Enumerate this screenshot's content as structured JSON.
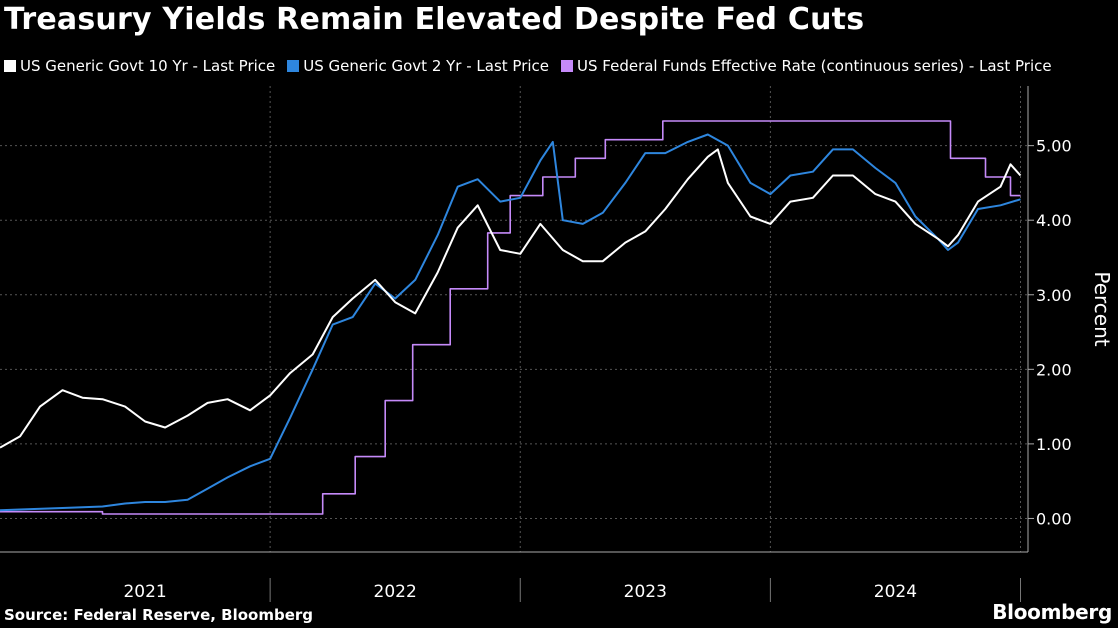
{
  "title": "Treasury Yields Remain Elevated Despite Fed Cuts",
  "source": "Source: Federal Reserve, Bloomberg",
  "brand": "Bloomberg",
  "chart_data": {
    "type": "line",
    "ylabel": "Percent",
    "ylim": [
      -0.45,
      5.8
    ],
    "xlim": [
      2020.92,
      2025.03
    ],
    "yticks": [
      0,
      1,
      2,
      3,
      4,
      5
    ],
    "ytick_labels": [
      "0.00",
      "1.00",
      "2.00",
      "3.00",
      "4.00",
      "5.00"
    ],
    "xtick_labels": [
      {
        "label": "2021",
        "center": 2021.5
      },
      {
        "label": "2022",
        "center": 2022.5
      },
      {
        "label": "2023",
        "center": 2023.5
      },
      {
        "label": "2024",
        "center": 2024.5
      }
    ],
    "year_boundaries": [
      2022.0,
      2023.0,
      2024.0,
      2025.0
    ],
    "grid": "dashed",
    "legend_position": "top-left",
    "series": [
      {
        "name": "US Generic Govt 10 Yr - Last Price",
        "color": "#ffffff",
        "points": [
          [
            2020.92,
            0.95
          ],
          [
            2021.0,
            1.1
          ],
          [
            2021.08,
            1.5
          ],
          [
            2021.17,
            1.72
          ],
          [
            2021.25,
            1.62
          ],
          [
            2021.33,
            1.6
          ],
          [
            2021.42,
            1.5
          ],
          [
            2021.5,
            1.3
          ],
          [
            2021.58,
            1.22
          ],
          [
            2021.67,
            1.38
          ],
          [
            2021.75,
            1.55
          ],
          [
            2021.83,
            1.6
          ],
          [
            2021.92,
            1.45
          ],
          [
            2022.0,
            1.65
          ],
          [
            2022.08,
            1.95
          ],
          [
            2022.17,
            2.2
          ],
          [
            2022.25,
            2.7
          ],
          [
            2022.33,
            2.95
          ],
          [
            2022.42,
            3.2
          ],
          [
            2022.5,
            2.9
          ],
          [
            2022.58,
            2.75
          ],
          [
            2022.67,
            3.3
          ],
          [
            2022.75,
            3.9
          ],
          [
            2022.83,
            4.2
          ],
          [
            2022.92,
            3.6
          ],
          [
            2023.0,
            3.55
          ],
          [
            2023.08,
            3.95
          ],
          [
            2023.17,
            3.6
          ],
          [
            2023.25,
            3.45
          ],
          [
            2023.33,
            3.45
          ],
          [
            2023.42,
            3.7
          ],
          [
            2023.5,
            3.85
          ],
          [
            2023.58,
            4.15
          ],
          [
            2023.67,
            4.55
          ],
          [
            2023.75,
            4.85
          ],
          [
            2023.79,
            4.95
          ],
          [
            2023.83,
            4.5
          ],
          [
            2023.92,
            4.05
          ],
          [
            2024.0,
            3.95
          ],
          [
            2024.08,
            4.25
          ],
          [
            2024.17,
            4.3
          ],
          [
            2024.25,
            4.6
          ],
          [
            2024.33,
            4.6
          ],
          [
            2024.42,
            4.35
          ],
          [
            2024.5,
            4.25
          ],
          [
            2024.58,
            3.95
          ],
          [
            2024.67,
            3.75
          ],
          [
            2024.71,
            3.65
          ],
          [
            2024.75,
            3.8
          ],
          [
            2024.83,
            4.25
          ],
          [
            2024.92,
            4.45
          ],
          [
            2024.96,
            4.75
          ],
          [
            2025.0,
            4.6
          ]
        ]
      },
      {
        "name": "US Generic Govt 2 Yr - Last Price",
        "color": "#2e86de",
        "points": [
          [
            2020.92,
            0.11
          ],
          [
            2021.0,
            0.12
          ],
          [
            2021.17,
            0.14
          ],
          [
            2021.33,
            0.16
          ],
          [
            2021.42,
            0.2
          ],
          [
            2021.5,
            0.22
          ],
          [
            2021.58,
            0.22
          ],
          [
            2021.67,
            0.25
          ],
          [
            2021.75,
            0.4
          ],
          [
            2021.83,
            0.55
          ],
          [
            2021.92,
            0.7
          ],
          [
            2022.0,
            0.8
          ],
          [
            2022.08,
            1.35
          ],
          [
            2022.17,
            2.0
          ],
          [
            2022.25,
            2.6
          ],
          [
            2022.33,
            2.7
          ],
          [
            2022.42,
            3.15
          ],
          [
            2022.5,
            2.95
          ],
          [
            2022.58,
            3.2
          ],
          [
            2022.67,
            3.8
          ],
          [
            2022.75,
            4.45
          ],
          [
            2022.83,
            4.55
          ],
          [
            2022.92,
            4.25
          ],
          [
            2023.0,
            4.3
          ],
          [
            2023.08,
            4.8
          ],
          [
            2023.13,
            5.05
          ],
          [
            2023.17,
            4.0
          ],
          [
            2023.25,
            3.95
          ],
          [
            2023.33,
            4.1
          ],
          [
            2023.42,
            4.5
          ],
          [
            2023.5,
            4.9
          ],
          [
            2023.58,
            4.9
          ],
          [
            2023.67,
            5.05
          ],
          [
            2023.75,
            5.15
          ],
          [
            2023.83,
            5.0
          ],
          [
            2023.92,
            4.5
          ],
          [
            2024.0,
            4.35
          ],
          [
            2024.08,
            4.6
          ],
          [
            2024.17,
            4.65
          ],
          [
            2024.25,
            4.95
          ],
          [
            2024.33,
            4.95
          ],
          [
            2024.42,
            4.7
          ],
          [
            2024.5,
            4.5
          ],
          [
            2024.58,
            4.05
          ],
          [
            2024.67,
            3.75
          ],
          [
            2024.71,
            3.6
          ],
          [
            2024.75,
            3.7
          ],
          [
            2024.83,
            4.15
          ],
          [
            2024.92,
            4.2
          ],
          [
            2025.0,
            4.28
          ]
        ]
      },
      {
        "name": "US Federal Funds Effective Rate (continuous series) - Last Price",
        "color": "#c58af9",
        "step": true,
        "points": [
          [
            2020.92,
            0.09
          ],
          [
            2021.33,
            0.06
          ],
          [
            2022.21,
            0.33
          ],
          [
            2022.34,
            0.83
          ],
          [
            2022.46,
            1.58
          ],
          [
            2022.57,
            2.33
          ],
          [
            2022.72,
            3.08
          ],
          [
            2022.87,
            3.83
          ],
          [
            2022.96,
            4.33
          ],
          [
            2023.09,
            4.58
          ],
          [
            2023.22,
            4.83
          ],
          [
            2023.34,
            5.08
          ],
          [
            2023.57,
            5.33
          ],
          [
            2024.72,
            4.83
          ],
          [
            2024.86,
            4.58
          ],
          [
            2024.96,
            4.33
          ],
          [
            2025.0,
            4.33
          ]
        ]
      }
    ]
  }
}
